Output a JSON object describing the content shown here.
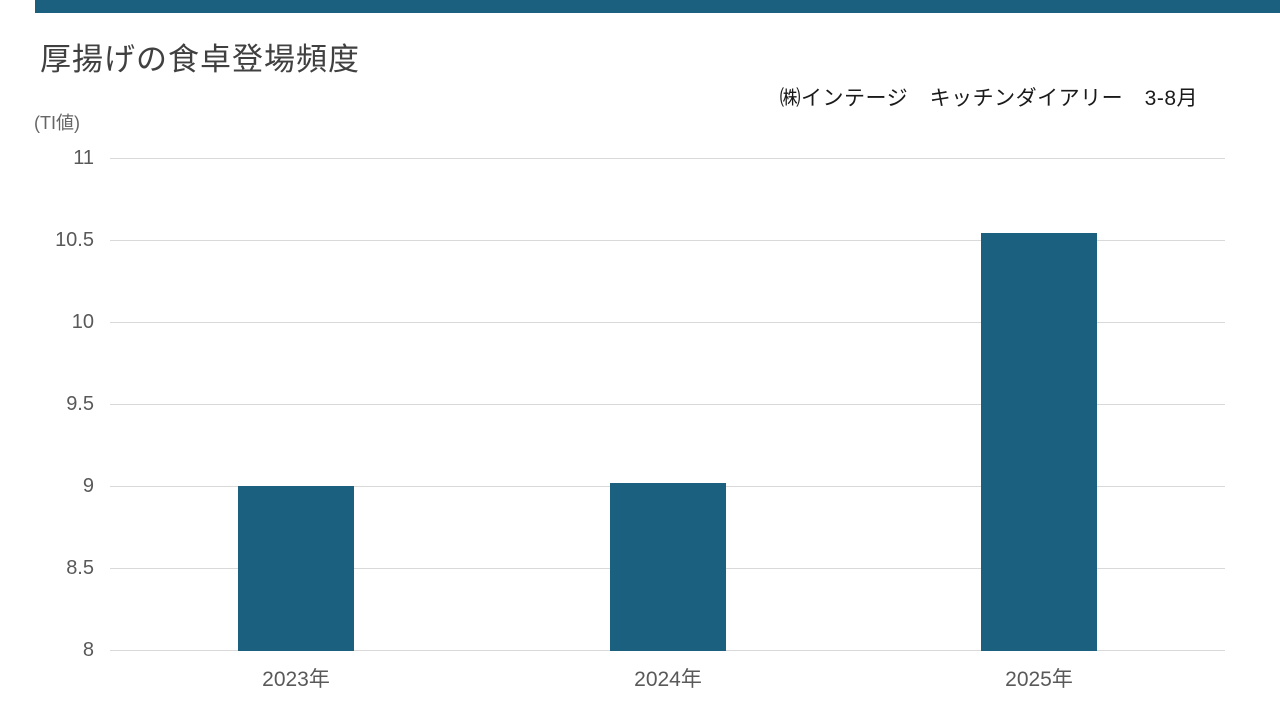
{
  "chart_data": {
    "type": "bar",
    "title": "厚揚げの食卓登場頻度",
    "ylabel": "(TI値)",
    "xlabel": "",
    "source": "㈱インテージ　キッチンダイアリー　3-8月",
    "categories": [
      "2023年",
      "2024年",
      "2025年"
    ],
    "values": [
      9.0,
      9.02,
      10.54
    ],
    "ylim": [
      8,
      11
    ],
    "ytick_step": 0.5,
    "ytick_labels": [
      "8",
      "8.5",
      "9",
      "9.5",
      "10",
      "10.5",
      "11"
    ],
    "grid": true,
    "legend": false
  },
  "colors": {
    "bar": "#1B617F",
    "accent_bar": "#1B617F",
    "gridline": "#D9D9D9",
    "title_text": "#404040",
    "tick_text": "#595959",
    "unit_text": "#666666",
    "source_text": "#1A1A1A",
    "background": "#FFFFFF"
  }
}
